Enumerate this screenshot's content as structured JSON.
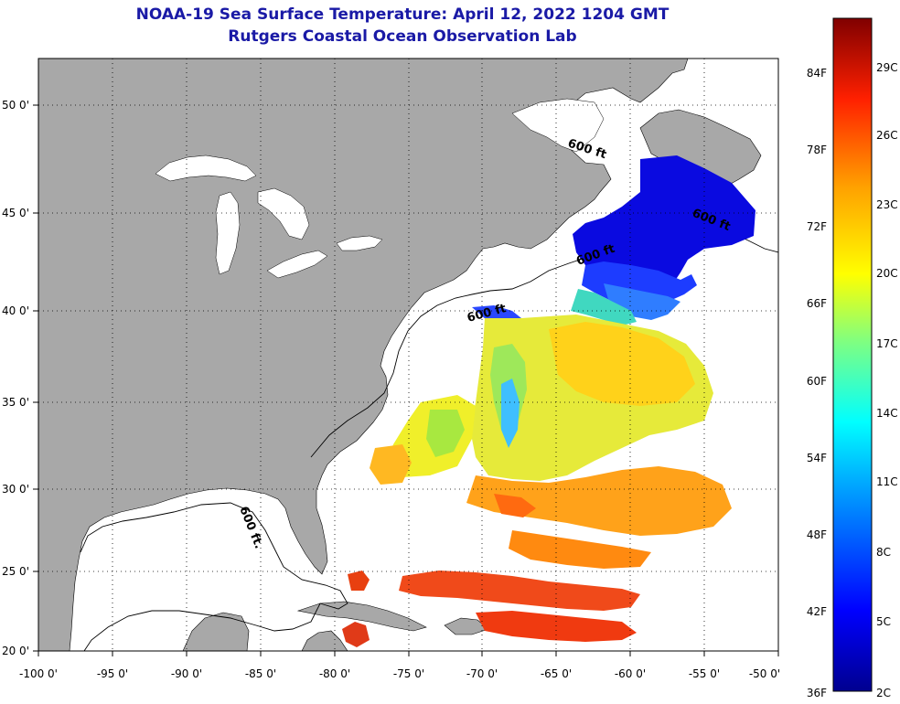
{
  "title": {
    "line1": "NOAA-19 Sea Surface Temperature:  April 12, 2022 1204 GMT",
    "line2": "Rutgers Coastal Ocean Observation Lab"
  },
  "axes": {
    "lon_labels": [
      "-100 0'",
      "-95 0'",
      "-90 0'",
      "-85 0'",
      "-80 0'",
      "-75 0'",
      "-70 0'",
      "-65 0'",
      "-60 0'",
      "-55 0'",
      "-50 0'"
    ],
    "lat_labels": [
      "20 0'",
      "25 0'",
      "30 0'",
      "35 0'",
      "40 0'",
      "45 0'",
      "50 0'"
    ]
  },
  "contour_label": "600 ft",
  "contour_label_alt": "600 ft.",
  "colorbar": {
    "f_labels": [
      "84F",
      "78F",
      "72F",
      "66F",
      "60F",
      "54F",
      "48F",
      "42F",
      "36F"
    ],
    "c_labels": [
      "29C",
      "26C",
      "23C",
      "20C",
      "17C",
      "14C",
      "11C",
      "8C",
      "5C",
      "2C"
    ]
  },
  "colors": {
    "land": "#a8a8a8",
    "ocean_nodata": "#ffffff",
    "title": "#1a1aa6"
  }
}
